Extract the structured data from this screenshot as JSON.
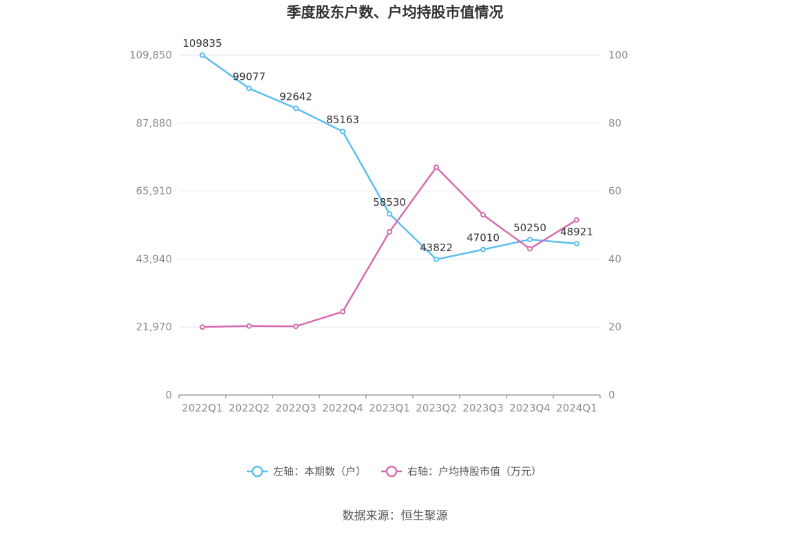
{
  "chart_data": {
    "type": "line",
    "title": "季度股东户数、户均持股市值情况",
    "categories": [
      "2022Q1",
      "2022Q2",
      "2022Q3",
      "2022Q4",
      "2023Q1",
      "2023Q2",
      "2023Q3",
      "2023Q4",
      "2024Q1"
    ],
    "series": [
      {
        "name": "左轴：本期数（户）",
        "axis": "left",
        "color": "#5bbdf0",
        "values": [
          109835,
          99077,
          92642,
          85163,
          58530,
          43822,
          47010,
          50250,
          48921
        ],
        "labels": [
          "109835",
          "99077",
          "92642",
          "85163",
          "58530",
          "43822",
          "47010",
          "50250",
          "48921"
        ]
      },
      {
        "name": "右轴：户均持股市值（万元）",
        "axis": "right",
        "color": "#d66bad",
        "values": [
          20.0,
          20.3,
          20.2,
          24.5,
          48.0,
          67.0,
          53.0,
          43.0,
          51.5
        ]
      }
    ],
    "left_axis": {
      "min": 0,
      "max": 109850,
      "ticks": [
        0,
        21970,
        43940,
        65910,
        87880,
        109850
      ],
      "tick_labels": [
        "0",
        "21,970",
        "43,940",
        "65,910",
        "87,880",
        "109,850"
      ]
    },
    "right_axis": {
      "min": 0,
      "max": 100,
      "ticks": [
        0,
        20,
        40,
        60,
        80,
        100
      ],
      "tick_labels": [
        "0",
        "20",
        "40",
        "60",
        "80",
        "100"
      ]
    },
    "grid": true,
    "legend_position": "bottom-center",
    "source": "数据来源：恒生聚源"
  }
}
